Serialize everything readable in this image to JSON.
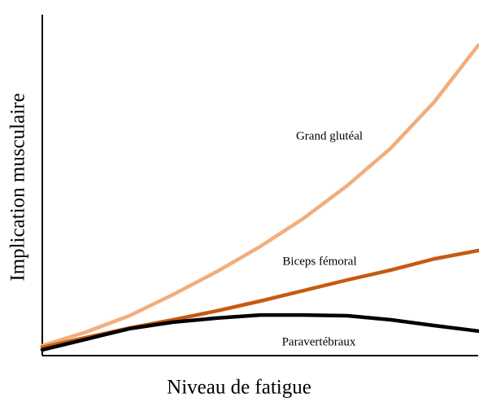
{
  "chart_data": {
    "type": "line",
    "x_label": "Niveau de fatigue",
    "y_label": "Implication musculaire",
    "x": [
      0,
      1,
      2,
      3,
      4,
      5,
      6,
      7,
      8,
      9,
      10
    ],
    "xlim": [
      0,
      10
    ],
    "ylim": [
      0,
      10
    ],
    "series": [
      {
        "name": "Grand glutéal",
        "color": "#f2ad7c",
        "values": [
          0.29,
          0.69,
          1.17,
          1.79,
          2.46,
          3.2,
          4.03,
          4.99,
          6.09,
          7.45,
          9.1
        ]
      },
      {
        "name": "Biceps fémoral",
        "color": "#c55a11",
        "values": [
          0.24,
          0.53,
          0.81,
          1.05,
          1.31,
          1.6,
          1.91,
          2.22,
          2.51,
          2.84,
          3.08
        ]
      },
      {
        "name": "Paravertébraux",
        "color": "#000000",
        "values": [
          0.17,
          0.48,
          0.79,
          0.98,
          1.1,
          1.19,
          1.19,
          1.17,
          1.05,
          0.88,
          0.72
        ]
      }
    ]
  }
}
